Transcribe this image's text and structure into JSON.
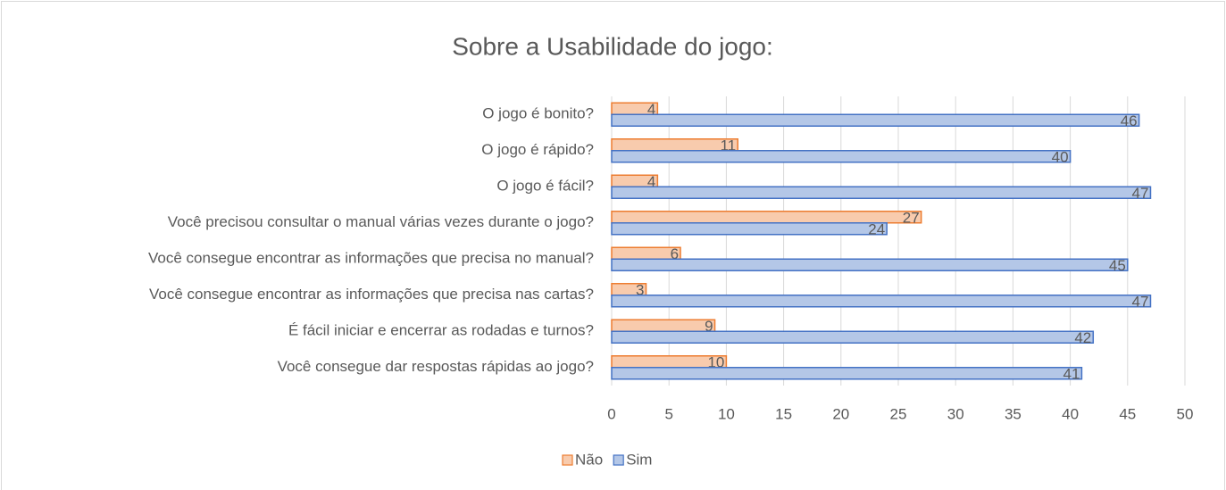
{
  "chart_data": {
    "type": "bar",
    "orientation": "horizontal",
    "title": "Sobre a Usabilidade do jogo:",
    "categories": [
      "O jogo é bonito?",
      "O jogo é rápido?",
      "O jogo é fácil?",
      "Você precisou consultar o manual várias vezes durante o jogo?",
      "Você consegue encontrar as informações que precisa no manual?",
      "Você consegue encontrar as informações que precisa nas cartas?",
      "É fácil iniciar e encerrar as rodadas e turnos?",
      "Você consegue dar respostas rápidas ao jogo?"
    ],
    "series": [
      {
        "name": "Não",
        "color": "#f8cbad",
        "edge": "#ed7d31",
        "values": [
          4,
          11,
          4,
          27,
          6,
          3,
          9,
          10
        ]
      },
      {
        "name": "Sim",
        "color": "#b4c7e7",
        "edge": "#4472c4",
        "values": [
          46,
          40,
          47,
          24,
          45,
          47,
          42,
          41
        ]
      }
    ],
    "xlim": [
      0,
      50
    ],
    "xticks": [
      0,
      5,
      10,
      15,
      20,
      25,
      30,
      35,
      40,
      45,
      50
    ],
    "grid": true,
    "legend": "bottom"
  }
}
